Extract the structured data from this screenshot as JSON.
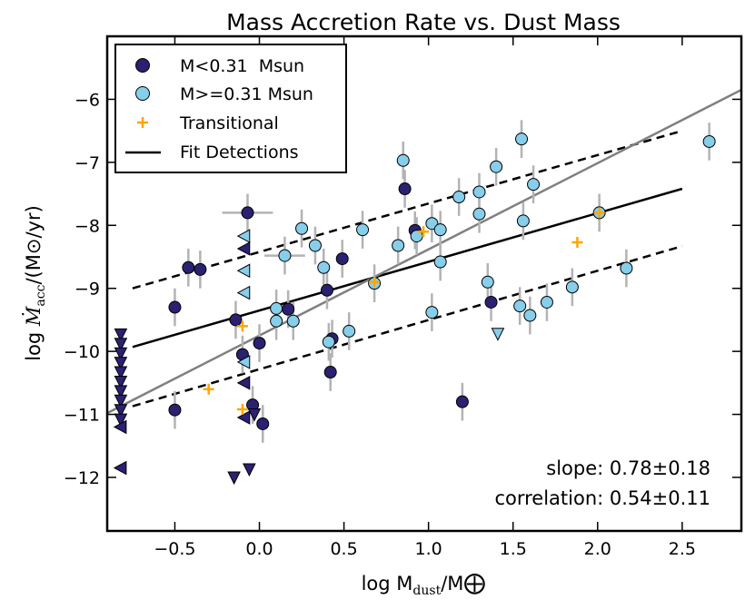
{
  "chart_data": {
    "type": "scatter",
    "title": "Mass Accretion Rate vs. Dust Mass",
    "xlabel": {
      "prefix": "log M",
      "sub": "dust",
      "middle": "/M",
      "symbol": "⨁"
    },
    "ylabel": {
      "prefix": "log ",
      "mdot": "Ṁ",
      "sub": "acc",
      "rest": "/(M",
      "sun": "⊙",
      "end": "/yr)"
    },
    "xlim": [
      -0.9,
      2.85
    ],
    "ylim": [
      -12.85,
      -5.0
    ],
    "xticks": [
      -0.5,
      0.0,
      0.5,
      1.0,
      1.5,
      2.0,
      2.5
    ],
    "xtick_labels": [
      "−0.5",
      "0.0",
      "0.5",
      "1.0",
      "1.5",
      "2.0",
      "2.5"
    ],
    "yticks": [
      -12,
      -11,
      -10,
      -9,
      -8,
      -7,
      -6
    ],
    "ytick_labels": [
      "−12",
      "−11",
      "−10",
      "−9",
      "−8",
      "−7",
      "−6"
    ],
    "legend": {
      "position": "top-left",
      "entries": [
        {
          "label": "M<0.31  Msun",
          "marker": "circle",
          "color": "#2b2171"
        },
        {
          "label": "M>=0.31 Msun",
          "marker": "circle",
          "color": "#87ceeb"
        },
        {
          "label": "Transitional",
          "marker": "plus",
          "color": "#ffa500"
        },
        {
          "label": "Fit Detections",
          "marker": "line",
          "color": "#000000"
        }
      ]
    },
    "annotations": {
      "slope": "slope: 0.78±0.18",
      "correlation": "correlation: 0.54±0.11"
    },
    "colors": {
      "low_mass": "#2b2171",
      "high_mass": "#87ceeb",
      "transitional": "#ffa500",
      "errorbar": "#b3b3b3",
      "gray_line": "#808080"
    },
    "lines": {
      "fit": {
        "name": "Fit Detections",
        "x": [
          -0.75,
          2.5
        ],
        "y": [
          -9.93,
          -7.42
        ],
        "style": "solid",
        "color": "#000000"
      },
      "fit_upper": {
        "x": [
          -0.75,
          2.5
        ],
        "y": [
          -9.0,
          -6.5
        ],
        "style": "dashed",
        "color": "#000000"
      },
      "fit_lower": {
        "x": [
          -0.75,
          2.5
        ],
        "y": [
          -10.87,
          -8.33
        ],
        "style": "dashed",
        "color": "#000000"
      },
      "gray_fit": {
        "x": [
          -0.9,
          2.85
        ],
        "y": [
          -10.98,
          -5.85
        ],
        "style": "solid",
        "color": "#808080"
      }
    },
    "series": [
      {
        "name": "M<0.31 Msun",
        "marker": "circle",
        "points": [
          {
            "x": -0.5,
            "y": -9.3,
            "yerr": 0.3
          },
          {
            "x": -0.42,
            "y": -8.67,
            "yerr": 0.3
          },
          {
            "x": -0.35,
            "y": -8.7,
            "yerr": 0.3
          },
          {
            "x": -0.5,
            "y": -10.93,
            "yerr": 0.3
          },
          {
            "x": -0.07,
            "y": -7.8,
            "yerr": 0.3,
            "xerr": 0.15
          },
          {
            "x": -0.14,
            "y": -9.5,
            "yerr": 0.3
          },
          {
            "x": -0.1,
            "y": -10.05,
            "yerr": 0.3
          },
          {
            "x": -0.04,
            "y": -10.85,
            "yerr": 0.3
          },
          {
            "x": 0.0,
            "y": -9.87,
            "yerr": 0.3
          },
          {
            "x": 0.02,
            "y": -11.15,
            "yerr": 0.3
          },
          {
            "x": 0.17,
            "y": -9.33,
            "yerr": 0.3
          },
          {
            "x": 0.4,
            "y": -9.03,
            "yerr": 0.3
          },
          {
            "x": 0.43,
            "y": -9.8,
            "yerr": 0.3
          },
          {
            "x": 0.42,
            "y": -10.33,
            "yerr": 0.3
          },
          {
            "x": 0.49,
            "y": -8.53,
            "yerr": 0.3
          },
          {
            "x": 0.86,
            "y": -7.42,
            "yerr": 0.3
          },
          {
            "x": 0.92,
            "y": -8.08,
            "yerr": 0.3
          },
          {
            "x": 1.37,
            "y": -9.22,
            "yerr": 0.3
          },
          {
            "x": 1.2,
            "y": -10.8,
            "yerr": 0.3
          }
        ]
      },
      {
        "name": "M>=0.31 Msun",
        "marker": "circle",
        "points": [
          {
            "x": 0.1,
            "y": -9.32,
            "yerr": 0.3
          },
          {
            "x": 0.1,
            "y": -9.52,
            "yerr": 0.3
          },
          {
            "x": 0.2,
            "y": -9.52,
            "yerr": 0.3
          },
          {
            "x": 0.15,
            "y": -8.48,
            "yerr": 0.3,
            "xerr": 0.12
          },
          {
            "x": 0.25,
            "y": -8.05,
            "yerr": 0.3
          },
          {
            "x": 0.33,
            "y": -8.32,
            "yerr": 0.3
          },
          {
            "x": 0.38,
            "y": -8.67,
            "yerr": 0.3
          },
          {
            "x": 0.41,
            "y": -9.85,
            "yerr": 0.3
          },
          {
            "x": 0.53,
            "y": -9.68,
            "yerr": 0.3
          },
          {
            "x": 0.61,
            "y": -8.07,
            "yerr": 0.3
          },
          {
            "x": 0.68,
            "y": -8.92,
            "yerr": 0.3
          },
          {
            "x": 0.82,
            "y": -8.32,
            "yerr": 0.3
          },
          {
            "x": 0.85,
            "y": -6.97,
            "yerr": 0.3
          },
          {
            "x": 0.93,
            "y": -8.17,
            "yerr": 0.3
          },
          {
            "x": 1.02,
            "y": -7.97,
            "yerr": 0.3
          },
          {
            "x": 1.02,
            "y": -9.38,
            "yerr": 0.3
          },
          {
            "x": 1.07,
            "y": -8.07,
            "yerr": 0.3
          },
          {
            "x": 1.07,
            "y": -8.58,
            "yerr": 0.3
          },
          {
            "x": 1.18,
            "y": -7.55,
            "yerr": 0.3
          },
          {
            "x": 1.3,
            "y": -7.47,
            "yerr": 0.3
          },
          {
            "x": 1.3,
            "y": -7.82,
            "yerr": 0.3
          },
          {
            "x": 1.35,
            "y": -8.9,
            "yerr": 0.3
          },
          {
            "x": 1.4,
            "y": -7.07,
            "yerr": 0.3
          },
          {
            "x": 1.55,
            "y": -6.63,
            "yerr": 0.3
          },
          {
            "x": 1.56,
            "y": -7.93,
            "yerr": 0.3
          },
          {
            "x": 1.54,
            "y": -9.28,
            "yerr": 0.3
          },
          {
            "x": 1.6,
            "y": -9.43,
            "yerr": 0.3
          },
          {
            "x": 1.62,
            "y": -7.35,
            "yerr": 0.3
          },
          {
            "x": 1.7,
            "y": -9.22,
            "yerr": 0.3
          },
          {
            "x": 1.85,
            "y": -8.98,
            "yerr": 0.3
          },
          {
            "x": 2.01,
            "y": -7.8,
            "yerr": 0.3
          },
          {
            "x": 2.17,
            "y": -8.68,
            "yerr": 0.3
          },
          {
            "x": 2.66,
            "y": -6.67,
            "yerr": 0.3
          }
        ]
      },
      {
        "name": "Transitional",
        "marker": "plus",
        "points": [
          {
            "x": -0.3,
            "y": -10.6
          },
          {
            "x": -0.1,
            "y": -9.6
          },
          {
            "x": -0.1,
            "y": -10.92
          },
          {
            "x": 0.68,
            "y": -8.9
          },
          {
            "x": 0.97,
            "y": -8.1
          },
          {
            "x": 1.88,
            "y": -8.27
          },
          {
            "x": 2.01,
            "y": -7.8
          }
        ]
      },
      {
        "name": "Upper limits (low mass)",
        "marker": "triangle-down",
        "points": [
          {
            "x": -0.15,
            "y": -12.0
          },
          {
            "x": -0.06,
            "y": -11.87
          },
          {
            "x": -0.03,
            "y": -11.0
          },
          {
            "x": -0.82,
            "y": -9.73
          },
          {
            "x": -0.82,
            "y": -9.88
          },
          {
            "x": -0.82,
            "y": -10.03
          },
          {
            "x": -0.82,
            "y": -10.18
          },
          {
            "x": -0.82,
            "y": -10.33
          },
          {
            "x": -0.82,
            "y": -10.48
          },
          {
            "x": -0.82,
            "y": -10.63
          },
          {
            "x": -0.82,
            "y": -10.78
          },
          {
            "x": -0.82,
            "y": -10.93
          },
          {
            "x": -0.82,
            "y": -11.08
          }
        ]
      },
      {
        "name": "Upper limits (high mass)",
        "marker": "triangle-down",
        "points": [
          {
            "x": 1.41,
            "y": -9.72
          }
        ]
      },
      {
        "name": "Dust upper limits (low mass)",
        "marker": "triangle-left",
        "points": [
          {
            "x": -0.09,
            "y": -8.37
          },
          {
            "x": -0.09,
            "y": -10.5
          },
          {
            "x": -0.09,
            "y": -11.05
          },
          {
            "x": -0.82,
            "y": -11.85
          },
          {
            "x": -0.82,
            "y": -11.2
          }
        ]
      },
      {
        "name": "Dust upper limits (high mass)",
        "marker": "triangle-left",
        "points": [
          {
            "x": -0.09,
            "y": -8.17
          },
          {
            "x": -0.09,
            "y": -8.72
          },
          {
            "x": -0.09,
            "y": -9.07
          },
          {
            "x": -0.09,
            "y": -10.17
          }
        ]
      }
    ]
  }
}
